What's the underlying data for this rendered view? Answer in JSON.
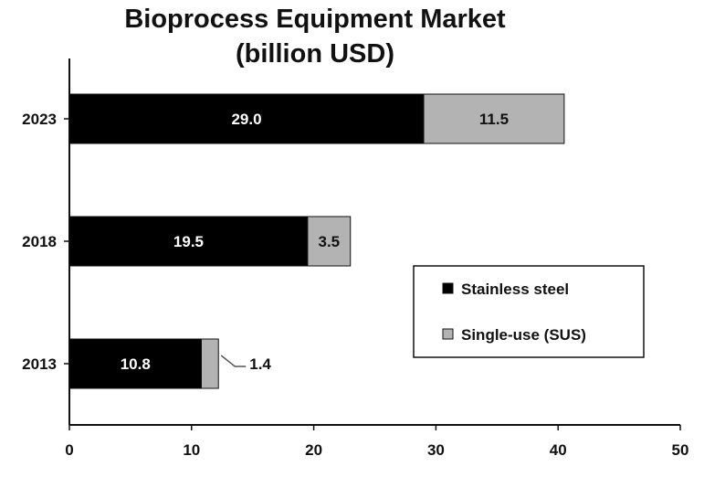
{
  "chart_data": {
    "type": "bar",
    "orientation": "horizontal",
    "stacked": true,
    "title_lines": [
      "Bioprocess Equipment Market",
      "(billion USD)"
    ],
    "categories": [
      "2023",
      "2018",
      "2013"
    ],
    "series": [
      {
        "name": "Stainless steel",
        "values": [
          29.0,
          19.5,
          10.8
        ],
        "labels": [
          "29.0",
          "19.5",
          "10.8"
        ],
        "color": "#000000",
        "label_color": "#ffffff"
      },
      {
        "name": "Single-use (SUS)",
        "values": [
          11.5,
          3.5,
          1.4
        ],
        "labels": [
          "11.5",
          "3.5",
          "1.4"
        ],
        "color": "#b3b3b3",
        "label_color": "#111111"
      }
    ],
    "xlim": [
      0,
      50
    ],
    "xticks": [
      "0",
      "10",
      "20",
      "30",
      "40",
      "50"
    ],
    "grid": false,
    "legend_position": "right"
  }
}
